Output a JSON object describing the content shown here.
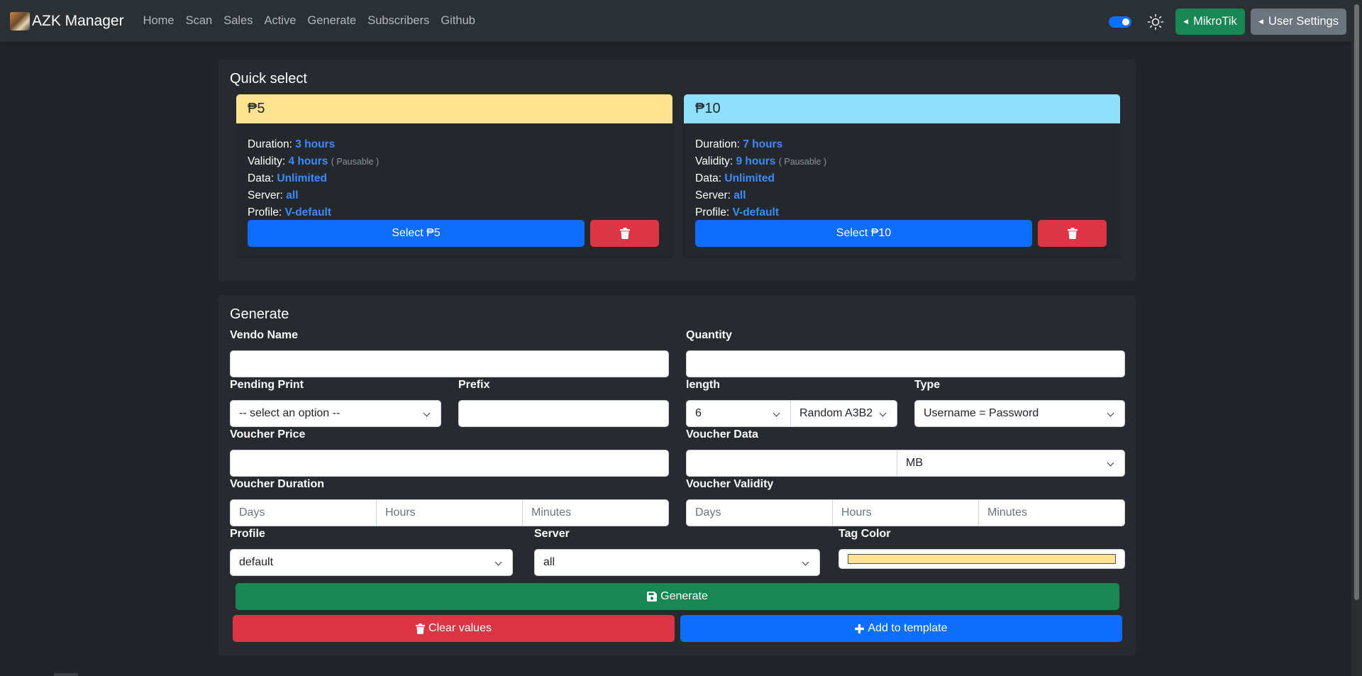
{
  "navbar": {
    "brand": "AZK Manager",
    "links": [
      "Home",
      "Scan",
      "Sales",
      "Active",
      "Generate",
      "Subscribers",
      "Github"
    ],
    "toggle_on": true,
    "mikrotik_label": "MikroTik",
    "user_settings_label": "User Settings"
  },
  "quick_select": {
    "title": "Quick select",
    "templates": [
      {
        "price": "₱5",
        "header_color": "#ffe390",
        "duration_label": "Duration:",
        "duration": "3 hours",
        "validity_label": "Validity:",
        "validity": "4 hours",
        "validity_note": "( Pausable )",
        "data_label": "Data:",
        "data": "Unlimited",
        "server_label": "Server:",
        "server": "all",
        "profile_label": "Profile:",
        "profile": "V-default",
        "select_label": "Select ₱5"
      },
      {
        "price": "₱10",
        "header_color": "#8fe0fc",
        "duration_label": "Duration:",
        "duration": "7 hours",
        "validity_label": "Validity:",
        "validity": "9 hours",
        "validity_note": "( Pausable )",
        "data_label": "Data:",
        "data": "Unlimited",
        "server_label": "Server:",
        "server": "all",
        "profile_label": "Profile:",
        "profile": "V-default",
        "select_label": "Select ₱10"
      }
    ]
  },
  "generate": {
    "title": "Generate",
    "vendo_name_label": "Vendo Name",
    "vendo_name_value": "",
    "quantity_label": "Quantity",
    "quantity_value": "",
    "pending_print_label": "Pending Print",
    "pending_print_value": "-- select an option --",
    "prefix_label": "Prefix",
    "prefix_value": "",
    "length_label": "length",
    "length_value": "6",
    "charset_value": "Random A3B2",
    "type_label": "Type",
    "type_value": "Username = Password",
    "voucher_price_label": "Voucher Price",
    "voucher_price_value": "",
    "voucher_data_label": "Voucher Data",
    "voucher_data_value": "",
    "voucher_data_unit": "MB",
    "voucher_duration_label": "Voucher Duration",
    "voucher_validity_label": "Voucher Validity",
    "days_placeholder": "Days",
    "hours_placeholder": "Hours",
    "minutes_placeholder": "Minutes",
    "profile_label": "Profile",
    "profile_value": "default",
    "server_label": "Server",
    "server_value": "all",
    "tag_color_label": "Tag Color",
    "tag_color_value": "#ffe390",
    "generate_label": "Generate",
    "clear_label": "Clear values",
    "add_template_label": "Add to template"
  },
  "colors": {
    "primary": "#0d6efd",
    "success": "#198754",
    "danger": "#dc3545",
    "secondary": "#6c757d"
  }
}
